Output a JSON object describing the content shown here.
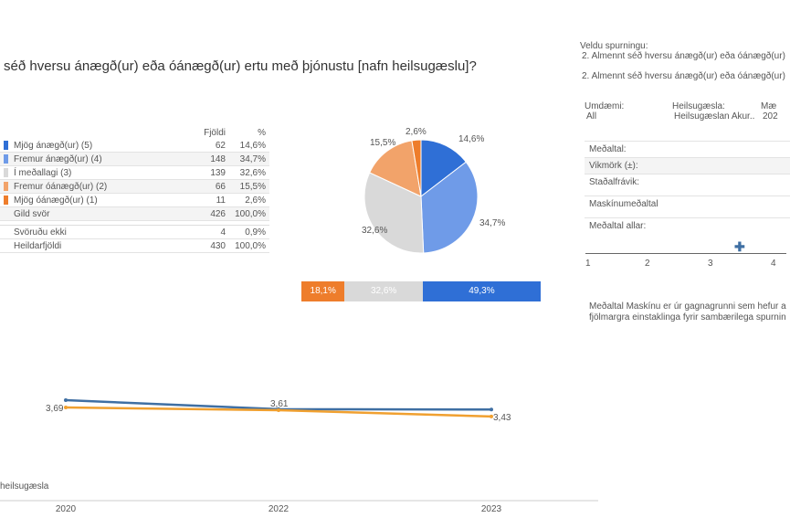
{
  "title": "séð hversu ánægð(ur) eða óánægð(ur) ertu með þjónustu [nafn heilsugæslu]?",
  "table": {
    "headers": [
      "Fjöldi",
      "%"
    ],
    "rows": [
      {
        "label": "Mjög ánægð(ur) (5)",
        "count": "62",
        "pct": "14,6%",
        "color": "#2f6fd6"
      },
      {
        "label": "Fremur ánægð(ur) (4)",
        "count": "148",
        "pct": "34,7%",
        "color": "#6f9be8"
      },
      {
        "label": "Í meðallagi (3)",
        "count": "139",
        "pct": "32,6%",
        "color": "#d9d9d9"
      },
      {
        "label": "Fremur óánægð(ur) (2)",
        "count": "66",
        "pct": "15,5%",
        "color": "#f2a36a"
      },
      {
        "label": "Mjög óánægð(ur) (1)",
        "count": "11",
        "pct": "2,6%",
        "color": "#ee7d2b"
      },
      {
        "label": "Gild svör",
        "count": "426",
        "pct": "100,0%"
      }
    ],
    "extra": [
      {
        "label": "Svöruðu ekki",
        "count": "4",
        "pct": "0,9%"
      },
      {
        "label": "Heildarfjöldi",
        "count": "430",
        "pct": "100,0%"
      }
    ]
  },
  "chart_data": [
    {
      "type": "pie",
      "values": [
        14.6,
        34.7,
        32.6,
        15.5,
        2.6
      ],
      "labels": [
        "14,6%",
        "34,7%",
        "32,6%",
        "15,5%",
        "2,6%"
      ],
      "colors": [
        "#2f6fd6",
        "#6f9be8",
        "#d9d9d9",
        "#f2a36a",
        "#ee7d2b"
      ]
    },
    {
      "type": "bar",
      "stacked": true,
      "values": [
        18.1,
        32.6,
        49.3
      ],
      "labels": [
        "18,1%",
        "32,6%",
        "49,3%"
      ],
      "colors": [
        "#ee7d2b",
        "#d9d9d9",
        "#2f6fd6"
      ]
    },
    {
      "type": "line",
      "categories": [
        "2020",
        "2022",
        "2023"
      ],
      "series": [
        {
          "name": "blue",
          "values": [
            3.9,
            3.64,
            3.63
          ],
          "color": "#3f6fa3"
        },
        {
          "name": "orange",
          "values": [
            3.69,
            3.61,
            3.43
          ],
          "color": "#f0a030"
        }
      ],
      "data_labels": [
        "3,69",
        "3,61",
        "3,43"
      ],
      "legend": "heilsugæsla"
    }
  ],
  "right": {
    "select_label": "Veldu spurningu:",
    "select_value": "2. Almennt séð hversu ánægð(ur) eða óánægð(ur)",
    "question": "2. Almennt séð hversu ánægð(ur) eða óánægð(ur)",
    "filters": [
      {
        "label": "Umdæmi:",
        "value": "All"
      },
      {
        "label": "Heilsugæsla:",
        "value": "Heilsugæslan Akur.."
      },
      {
        "label": "Mæ",
        "value": "202"
      }
    ],
    "stats": [
      "Meðaltal:",
      "Vikmörk (±):",
      "Staðalfrávik:",
      "Maskínumeðaltal",
      "Meðaltal allar:"
    ],
    "axis": [
      "1",
      "2",
      "3",
      "4"
    ],
    "note1": "Meðaltal Maskínu er úr gagnagrunni sem hefur a",
    "note2": "fjölmargra einstaklinga fyrir sambærilega spurnin"
  }
}
